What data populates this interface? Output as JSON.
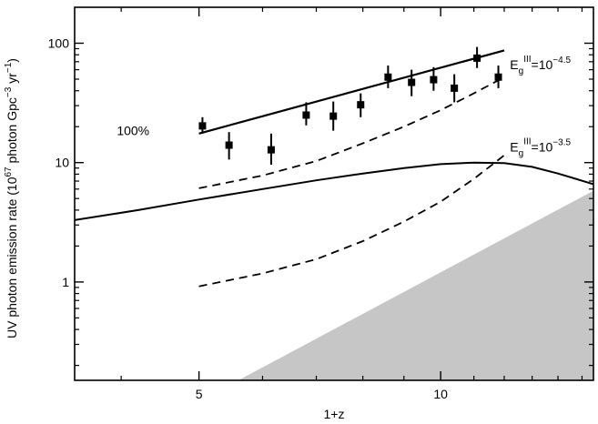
{
  "chart_data": {
    "type": "scatter",
    "xlabel": "1+z",
    "ylabel": "UV photon emission rate (10^67 photon Gpc^-3 yr^-1)",
    "ylabel_parts": {
      "pre": "UV photon emission rate (10",
      "sup1": "67",
      "mid": " photon Gpc",
      "sup2": "−3",
      "mid2": " yr",
      "sup3": "−1",
      "post": ")"
    },
    "x_scale": "log",
    "y_scale": "log",
    "xlim": [
      3.5,
      15.5
    ],
    "ylim": [
      0.15,
      200
    ],
    "x_ticks": [
      {
        "value": 5,
        "label": "5"
      },
      {
        "value": 10,
        "label": "10"
      }
    ],
    "x_minor_ticks": [
      4,
      6,
      7,
      8,
      9,
      11,
      12,
      13,
      14,
      15
    ],
    "y_ticks": [
      {
        "value": 1,
        "label": "1"
      },
      {
        "value": 10,
        "label": "10"
      },
      {
        "value": 100,
        "label": "100"
      }
    ],
    "y_minor_ticks": [
      0.2,
      0.3,
      0.4,
      0.5,
      0.6,
      0.7,
      0.8,
      0.9,
      2,
      3,
      4,
      5,
      6,
      7,
      8,
      9,
      20,
      30,
      40,
      50,
      60,
      70,
      80,
      90
    ],
    "data_points": [
      {
        "x": 5.05,
        "y": 20.3,
        "y_low": 17.5,
        "y_high": 24.0
      },
      {
        "x": 5.45,
        "y": 14.0,
        "y_low": 10.6,
        "y_high": 18.0
      },
      {
        "x": 6.15,
        "y": 12.8,
        "y_low": 9.6,
        "y_high": 17.5
      },
      {
        "x": 6.8,
        "y": 25.0,
        "y_low": 20.5,
        "y_high": 32.0
      },
      {
        "x": 7.35,
        "y": 24.5,
        "y_low": 18.5,
        "y_high": 32.5
      },
      {
        "x": 7.95,
        "y": 30.5,
        "y_low": 24.0,
        "y_high": 38.0
      },
      {
        "x": 8.6,
        "y": 52.0,
        "y_low": 42.0,
        "y_high": 65.0
      },
      {
        "x": 9.2,
        "y": 47.0,
        "y_low": 36.0,
        "y_high": 60.0
      },
      {
        "x": 9.8,
        "y": 49.5,
        "y_low": 40.0,
        "y_high": 63.0
      },
      {
        "x": 10.4,
        "y": 42.0,
        "y_low": 32.0,
        "y_high": 55.0
      },
      {
        "x": 11.1,
        "y": 75.0,
        "y_low": 62.0,
        "y_high": 93.0
      },
      {
        "x": 11.8,
        "y": 52.0,
        "y_low": 42.0,
        "y_high": 65.0
      }
    ],
    "fit_line": {
      "x": [
        5.0,
        12.0
      ],
      "y": [
        17.5,
        87.0
      ]
    },
    "solid_curve": {
      "x": [
        3.5,
        4.2,
        5.0,
        6.0,
        7.0,
        8.0,
        9.0,
        10.0,
        11.0,
        12.0,
        13.0,
        14.0,
        15.5
      ],
      "y": [
        3.3,
        4.0,
        4.9,
        6.0,
        7.1,
        8.1,
        9.0,
        9.7,
        10.0,
        9.9,
        9.2,
        8.1,
        6.6
      ]
    },
    "dashed_upper": {
      "x": [
        5.0,
        6.0,
        7.0,
        8.0,
        9.0,
        10.0,
        11.0,
        12.0
      ],
      "y": [
        6.1,
        7.8,
        10.3,
        14.5,
        20.0,
        27.5,
        38.0,
        52.0
      ]
    },
    "dashed_lower": {
      "x": [
        5.0,
        6.0,
        7.0,
        8.0,
        9.0,
        10.0,
        11.0,
        12.0
      ],
      "y": [
        0.92,
        1.18,
        1.55,
        2.2,
        3.2,
        4.7,
        7.3,
        11.5
      ]
    },
    "shaded_region": {
      "x": [
        5.6,
        15.5
      ],
      "y_top": [
        0.15,
        5.8
      ],
      "fill": "#c6c6c6"
    },
    "annotations": {
      "label_100": {
        "text": "100%",
        "x": 3.95,
        "y": 18.5
      },
      "eg_upper": {
        "base": "E",
        "sub": "g",
        "sup": "III",
        "eq": "=10",
        "exp": "−4.5",
        "x": 12.2,
        "y": 66
      },
      "eg_lower": {
        "base": "E",
        "sub": "g",
        "sup": "III",
        "eq": "=10",
        "exp": "−3.5",
        "x": 12.2,
        "y": 13.5
      }
    }
  }
}
